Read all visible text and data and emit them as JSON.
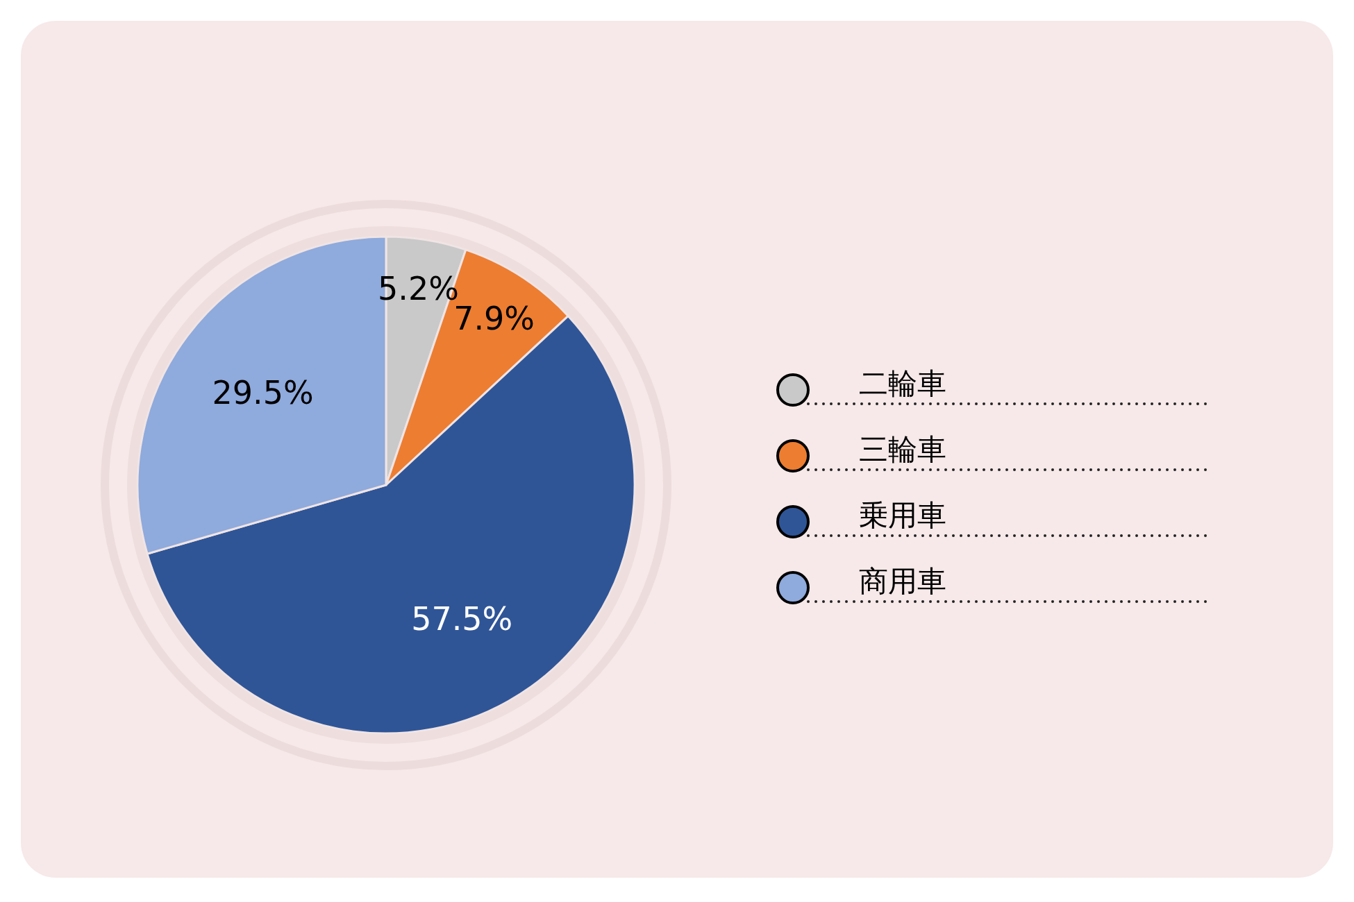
{
  "chart_data": {
    "type": "pie",
    "categories": [
      "二輪車",
      "三輪車",
      "乗用車",
      "商用車"
    ],
    "values": [
      5.2,
      7.9,
      57.5,
      29.5
    ],
    "colors": [
      "#c9c9c9",
      "#ed7d31",
      "#2f5597",
      "#8faadc"
    ],
    "value_labels": [
      "5.2%",
      "7.9%",
      "57.5%",
      "29.5%"
    ],
    "legend": "right"
  }
}
